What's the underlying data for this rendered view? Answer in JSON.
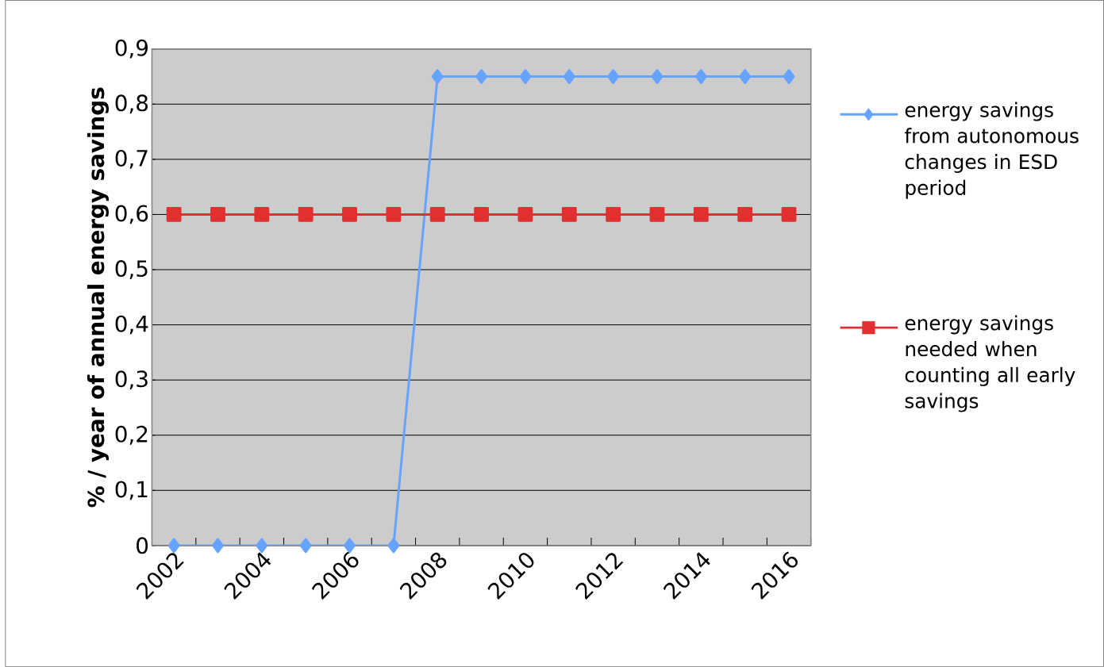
{
  "chart_data": {
    "type": "line",
    "ylabel": "% / year of annual energy savings",
    "categories": [
      "2002",
      null,
      "2004",
      null,
      "2006",
      null,
      "2008",
      null,
      "2010",
      null,
      "2012",
      null,
      "2014",
      null,
      "2016"
    ],
    "series": [
      {
        "name": "energy savings from autonomous changes in ESD period",
        "color": "#66a3ff",
        "marker": "diamond",
        "values": [
          0,
          0,
          0,
          0,
          0,
          0,
          0.85,
          0.85,
          0.85,
          0.85,
          0.85,
          0.85,
          0.85,
          0.85,
          0.85
        ]
      },
      {
        "name": "energy savings needed when counting all early savings",
        "color": "#e03030",
        "marker": "square",
        "values": [
          0.6,
          0.6,
          0.6,
          0.6,
          0.6,
          0.6,
          0.6,
          0.6,
          0.6,
          0.6,
          0.6,
          0.6,
          0.6,
          0.6,
          0.6
        ]
      }
    ],
    "ylim": [
      0,
      0.9
    ],
    "yticks": [
      0,
      {
        "value": 0.1,
        "label": "0,1"
      },
      {
        "value": 0.2,
        "label": "0,2"
      },
      {
        "value": 0.3,
        "label": "0,3"
      },
      {
        "value": 0.4,
        "label": "0,4"
      },
      {
        "value": 0.5,
        "label": "0,5"
      },
      {
        "value": 0.6,
        "label": "0,6"
      },
      {
        "value": 0.7,
        "label": "0,7"
      },
      {
        "value": 0.8,
        "label": "0,8"
      },
      {
        "value": 0.9,
        "label": "0,9"
      }
    ],
    "grid": "y",
    "legend": "right",
    "line_style": "solid"
  }
}
